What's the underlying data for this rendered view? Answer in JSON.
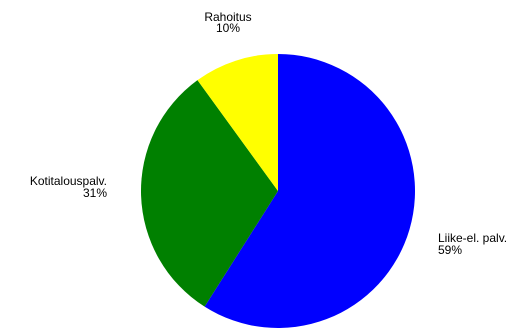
{
  "chart_data": {
    "type": "pie",
    "title": "",
    "slices": [
      {
        "label": "Liike-el. palv.",
        "value": 59,
        "value_label": "59%",
        "color": "#0000ff"
      },
      {
        "label": "Kotitalouspalv.",
        "value": 31,
        "value_label": "31%",
        "color": "#008000"
      },
      {
        "label": "Rahoitus",
        "value": 10,
        "value_label": "10%",
        "color": "#ffff00"
      }
    ],
    "start": "top",
    "direction": "clockwise",
    "legend": "none"
  }
}
